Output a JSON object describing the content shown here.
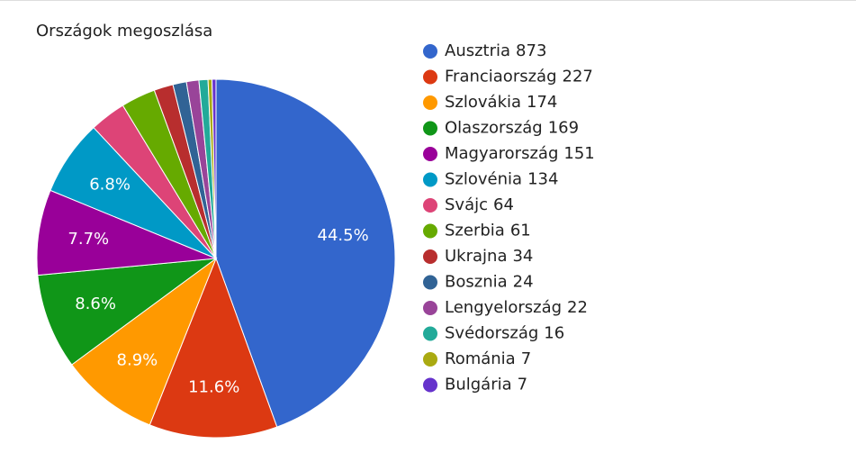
{
  "chart_data": {
    "type": "pie",
    "title": "Országok megoszlása",
    "categories": [
      "Ausztria",
      "Franciaország",
      "Szlovákia",
      "Olaszország",
      "Magyarország",
      "Szlovénia",
      "Svájc",
      "Szerbia",
      "Ukrajna",
      "Bosznia",
      "Lengyelország",
      "Svédország",
      "Románia",
      "Bulgária"
    ],
    "values": [
      873,
      227,
      174,
      169,
      151,
      134,
      64,
      61,
      34,
      24,
      22,
      16,
      7,
      7
    ],
    "value_labels": [
      "44.5%",
      "11.6%",
      "8.9%",
      "8.6%",
      "7.7%",
      "6.8%",
      null,
      null,
      null,
      null,
      null,
      null,
      null,
      null
    ],
    "colors": [
      "#3366cc",
      "#dc3912",
      "#ff9900",
      "#109618",
      "#990099",
      "#0099c6",
      "#dd4477",
      "#66aa00",
      "#b82e2e",
      "#316395",
      "#994499",
      "#22aa99",
      "#aaaa11",
      "#6633cc"
    ],
    "legend": "right"
  }
}
